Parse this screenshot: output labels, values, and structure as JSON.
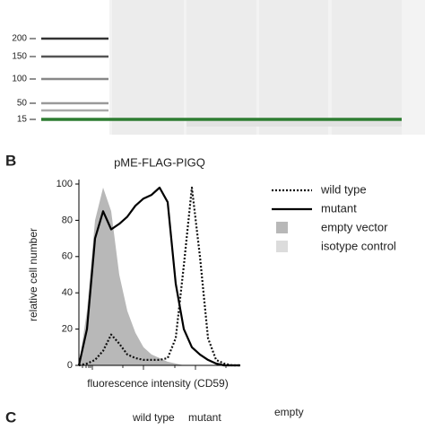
{
  "gel": {
    "ladder_labels": [
      "200",
      "150",
      "100",
      "50",
      "15"
    ]
  },
  "panel_b": {
    "label": "B"
  },
  "chart_data": {
    "type": "histogram-overlay",
    "title": "pME-FLAG-PIGQ",
    "ylabel": "relative cell number",
    "xlabel": "fluorescence intensity (CD59)",
    "ylim": [
      0,
      100
    ],
    "yticks": [
      0,
      20,
      40,
      60,
      80,
      100
    ],
    "xlim": [
      0,
      100
    ],
    "x": [
      0,
      5,
      10,
      15,
      20,
      25,
      30,
      35,
      40,
      45,
      50,
      55,
      60,
      65,
      70,
      75,
      80,
      85,
      90,
      95,
      100
    ],
    "series": [
      {
        "name": "wild type",
        "style": "dotted",
        "color": "#111111",
        "values": [
          0,
          1,
          3,
          8,
          17,
          12,
          6,
          4,
          3,
          3,
          3,
          4,
          15,
          55,
          98,
          60,
          15,
          3,
          1,
          0,
          0
        ]
      },
      {
        "name": "mutant",
        "style": "solid",
        "color": "#000000",
        "values": [
          0,
          20,
          70,
          85,
          75,
          78,
          82,
          88,
          92,
          94,
          98,
          90,
          45,
          20,
          10,
          6,
          3,
          1,
          0,
          0,
          0
        ]
      },
      {
        "name": "empty vector",
        "style": "fill",
        "color": "#b8b8b8",
        "values": [
          0,
          30,
          80,
          98,
          85,
          50,
          30,
          18,
          10,
          6,
          4,
          2,
          1,
          0,
          0,
          0,
          0,
          0,
          0,
          0,
          0
        ]
      },
      {
        "name": "isotype control",
        "style": "fill",
        "color": "#dcdcdc",
        "values": [
          0,
          25,
          75,
          92,
          80,
          45,
          28,
          15,
          8,
          5,
          3,
          2,
          1,
          0,
          0,
          0,
          0,
          0,
          0,
          0,
          0
        ]
      }
    ]
  },
  "panel_c": {
    "label": "C",
    "lane_labels": [
      "wild type",
      "mutant",
      "empty"
    ]
  }
}
